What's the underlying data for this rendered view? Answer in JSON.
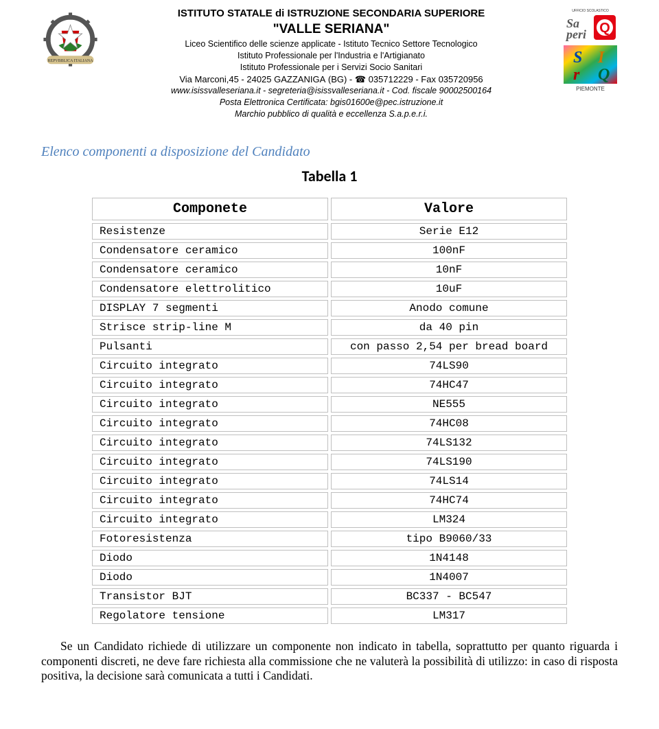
{
  "header": {
    "line1": "ISTITUTO STATALE di ISTRUZIONE SECONDARIA SUPERIORE",
    "line2": "\"VALLE SERIANA\"",
    "line3": "Liceo Scientifico delle scienze applicate - Istituto Tecnico Settore Tecnologico",
    "line4": "Istituto Professionale per l'Industria e l'Artigianato",
    "line5": "Istituto Professionale per i Servizi Socio Sanitari",
    "line6_pre": "Via Marconi,45 - 24025 G",
    "line6_sc": "AZZANIGA",
    "line6_post": " (BG) - ☎ 035712229 - Fax 035720956",
    "line7": "www.isissvalleseriana.it - segreteria@isissvalleseriana.it  - Cod. fiscale 90002500164",
    "line8": "Posta Elettronica Certificata: bgis01600e@pec.istruzione.it",
    "line9": "Marchio pubblico di qualità e eccellenza S.a.p.e.r.i."
  },
  "right_logos": {
    "top_label": "UFFICIO SCOLASTICO",
    "saperi": "Saperi",
    "bottom_label": "PIEMONTE"
  },
  "section_title": "Elenco componenti a disposizione del Candidato",
  "table_title": "Tabella 1",
  "table": {
    "head_left": "Componete",
    "head_right": "Valore",
    "rows": [
      {
        "c": "Resistenze",
        "v": "Serie E12"
      },
      {
        "c": "Condensatore ceramico",
        "v": "100nF"
      },
      {
        "c": "Condensatore ceramico",
        "v": "10nF"
      },
      {
        "c": "Condensatore elettrolitico",
        "v": "10uF"
      },
      {
        "c": "DISPLAY 7 segmenti",
        "v": "Anodo comune"
      },
      {
        "c": "Strisce strip-line M",
        "v": "da 40 pin"
      },
      {
        "c": "Pulsanti",
        "v": "con passo 2,54 per bread board"
      },
      {
        "c": "Circuito integrato",
        "v": "74LS90"
      },
      {
        "c": "Circuito integrato",
        "v": "74HC47"
      },
      {
        "c": "Circuito integrato",
        "v": "NE555"
      },
      {
        "c": "Circuito integrato",
        "v": "74HC08"
      },
      {
        "c": "Circuito integrato",
        "v": "74LS132"
      },
      {
        "c": "Circuito integrato",
        "v": "74LS190"
      },
      {
        "c": "Circuito integrato",
        "v": "74LS14"
      },
      {
        "c": "Circuito integrato",
        "v": "74HC74"
      },
      {
        "c": "Circuito integrato",
        "v": "LM324"
      },
      {
        "c": "Fotoresistenza",
        "v": "tipo B9060/33"
      },
      {
        "c": "Diodo",
        "v": "1N4148"
      },
      {
        "c": "Diodo",
        "v": "1N4007"
      },
      {
        "c": "Transistor BJT",
        "v": "BC337 - BC547"
      },
      {
        "c": "Regolatore tensione",
        "v": "LM317"
      }
    ]
  },
  "footer_paragraph": "Se un Candidato richiede di utilizzare un componente non indicato in tabella, soprattutto per quanto riguarda i componenti discreti, ne deve fare richiesta alla commissione che ne valuterà la possibilità di utilizzo: in caso di risposta positiva, la decisione sarà comunicata a tutti i Candidati.",
  "colors": {
    "section_title": "#4f81bd",
    "table_border": "#bfbfbf",
    "text": "#000000",
    "background": "#ffffff",
    "saperi_red": "#e30613",
    "saperi_gray": "#595959",
    "q_block": "#e30613",
    "srq_yellow": "#ffd400",
    "srq_green": "#2fa84f",
    "srq_red": "#e30613",
    "srq_cyan": "#00b3e6",
    "srq_pink": "#ff66a3"
  }
}
